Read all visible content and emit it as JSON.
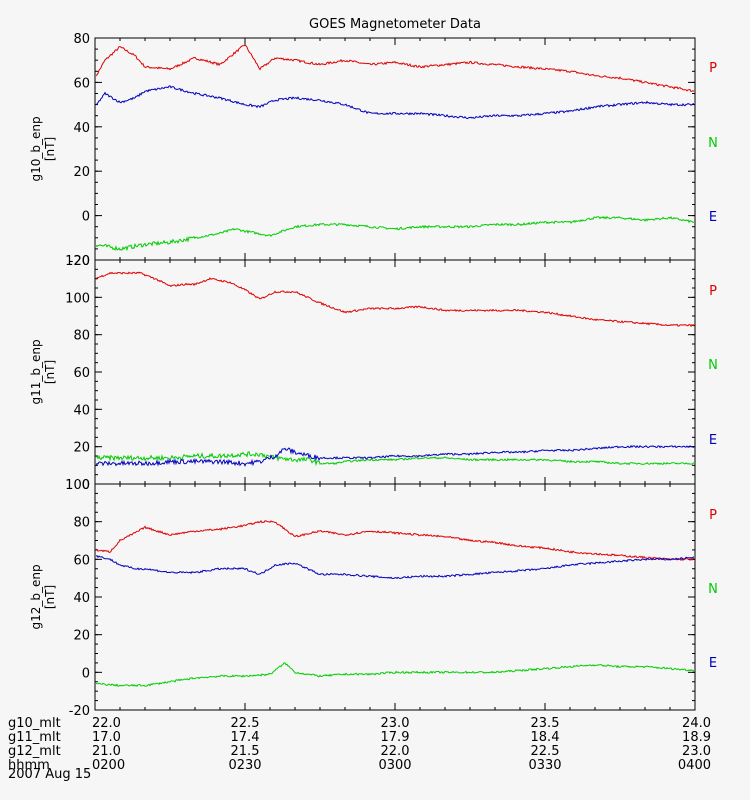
{
  "chart_data": [
    {
      "type": "line",
      "title": "GOES Magnetometer Data",
      "ylabel": "g10_b_enp",
      "yunits": "[nT]",
      "ylim": [
        -20,
        80
      ],
      "yticks": [
        -20,
        0,
        20,
        40,
        60,
        80
      ],
      "yticks_text": [
        "-20",
        "0",
        "20",
        "40",
        "60",
        "80"
      ],
      "xlim": [
        0,
        120
      ],
      "series": [
        {
          "name": "P",
          "color": "#dd0000",
          "x": [
            0,
            2,
            5,
            8,
            10,
            15,
            20,
            25,
            30,
            33,
            36,
            40,
            45,
            50,
            55,
            60,
            65,
            70,
            75,
            80,
            85,
            90,
            95,
            100,
            105,
            110,
            115,
            120
          ],
          "values": [
            62,
            70,
            76,
            72,
            67,
            66,
            71,
            68,
            77,
            66,
            71,
            70,
            68,
            70,
            68,
            69,
            67,
            68,
            69,
            68,
            67,
            66,
            65,
            63,
            62,
            60,
            58,
            56
          ]
        },
        {
          "name": "N",
          "color": "#00cc00",
          "x": [
            0,
            5,
            10,
            15,
            20,
            25,
            28,
            30,
            35,
            40,
            45,
            50,
            55,
            60,
            65,
            70,
            75,
            80,
            85,
            90,
            95,
            100,
            105,
            110,
            115,
            120
          ],
          "values": [
            -13,
            -15,
            -13,
            -12,
            -10,
            -8,
            -6,
            -7,
            -9,
            -5,
            -4,
            -4,
            -5,
            -6,
            -5,
            -5,
            -5,
            -4,
            -4,
            -3,
            -3,
            -1,
            -1,
            -2,
            -1,
            -3
          ]
        },
        {
          "name": "E",
          "color": "#0000bb",
          "x": [
            0,
            2,
            5,
            8,
            10,
            15,
            20,
            25,
            30,
            33,
            36,
            40,
            45,
            50,
            55,
            60,
            65,
            70,
            75,
            80,
            85,
            90,
            95,
            100,
            105,
            110,
            115,
            120
          ],
          "values": [
            49,
            55,
            51,
            53,
            56,
            58,
            55,
            53,
            50,
            49,
            52,
            53,
            52,
            50,
            46,
            46,
            46,
            45,
            44,
            45,
            45,
            46,
            47,
            49,
            50,
            51,
            50,
            50
          ]
        }
      ]
    },
    {
      "type": "line",
      "ylabel": "g11_b_enp",
      "yunits": "[nT]",
      "ylim": [
        0,
        120
      ],
      "yticks": [
        0,
        20,
        40,
        60,
        80,
        100,
        120
      ],
      "yticks_text": [
        "0",
        "20",
        "40",
        "60",
        "80",
        "100",
        "120"
      ],
      "xlim": [
        0,
        120
      ],
      "series": [
        {
          "name": "P",
          "color": "#dd0000",
          "x": [
            0,
            3,
            6,
            9,
            12,
            15,
            18,
            20,
            23,
            25,
            27,
            30,
            33,
            36,
            40,
            45,
            50,
            55,
            60,
            65,
            70,
            75,
            80,
            85,
            90,
            95,
            100,
            105,
            110,
            115,
            120
          ],
          "values": [
            110,
            113,
            113,
            113,
            110,
            106,
            107,
            107,
            110,
            109,
            108,
            104,
            99,
            103,
            103,
            97,
            92,
            94,
            94,
            95,
            93,
            93,
            93,
            93,
            92,
            90,
            88,
            87,
            86,
            85,
            85
          ]
        },
        {
          "name": "N",
          "color": "#00cc00",
          "x": [
            0,
            5,
            10,
            15,
            20,
            25,
            30,
            33,
            36,
            40,
            43,
            45,
            48,
            50,
            55,
            60,
            65,
            70,
            75,
            80,
            85,
            90,
            95,
            100,
            105,
            110,
            115,
            120
          ],
          "values": [
            14,
            14,
            14,
            14,
            15,
            15,
            16,
            16,
            14,
            13,
            13,
            11,
            11,
            12,
            13,
            13,
            14,
            14,
            13,
            13,
            13,
            13,
            12,
            12,
            11,
            11,
            11,
            11
          ]
        },
        {
          "name": "E",
          "color": "#0000bb",
          "x": [
            0,
            5,
            10,
            15,
            20,
            25,
            30,
            33,
            36,
            38,
            40,
            43,
            45,
            50,
            55,
            60,
            65,
            70,
            75,
            80,
            85,
            90,
            95,
            100,
            105,
            110,
            115,
            120
          ],
          "values": [
            11,
            11,
            11,
            12,
            12,
            12,
            11,
            12,
            15,
            19,
            17,
            15,
            14,
            14,
            14,
            15,
            15,
            16,
            16,
            17,
            17,
            18,
            18,
            19,
            20,
            20,
            20,
            20
          ]
        }
      ]
    },
    {
      "type": "line",
      "ylabel": "g12_b_enp",
      "yunits": "[nT]",
      "ylim": [
        -20,
        100
      ],
      "yticks": [
        -20,
        0,
        20,
        40,
        60,
        80,
        100
      ],
      "yticks_text": [
        "-20",
        "0",
        "20",
        "40",
        "60",
        "80",
        "100"
      ],
      "xlim": [
        0,
        120
      ],
      "series": [
        {
          "name": "P",
          "color": "#dd0000",
          "x": [
            0,
            3,
            5,
            8,
            10,
            15,
            20,
            25,
            30,
            33,
            36,
            40,
            45,
            50,
            55,
            60,
            65,
            70,
            75,
            80,
            85,
            90,
            95,
            100,
            105,
            110,
            115,
            120
          ],
          "values": [
            65,
            64,
            70,
            74,
            77,
            73,
            75,
            76,
            78,
            80,
            80,
            72,
            75,
            73,
            75,
            74,
            73,
            72,
            70,
            69,
            67,
            66,
            64,
            63,
            62,
            61,
            60,
            60
          ]
        },
        {
          "name": "N",
          "color": "#00cc00",
          "x": [
            0,
            5,
            10,
            15,
            20,
            25,
            30,
            35,
            38,
            40,
            45,
            50,
            55,
            60,
            65,
            70,
            75,
            80,
            85,
            90,
            95,
            100,
            105,
            110,
            115,
            120
          ],
          "values": [
            -6,
            -7,
            -7,
            -5,
            -3,
            -2,
            -2,
            -1,
            5,
            0,
            -2,
            -1,
            -1,
            0,
            0,
            0,
            0,
            0,
            1,
            2,
            3,
            4,
            3,
            3,
            2,
            1
          ]
        },
        {
          "name": "E",
          "color": "#0000bb",
          "x": [
            0,
            3,
            5,
            8,
            10,
            15,
            20,
            25,
            30,
            33,
            36,
            40,
            45,
            50,
            55,
            60,
            65,
            70,
            75,
            80,
            85,
            90,
            95,
            100,
            105,
            110,
            115,
            120
          ],
          "values": [
            62,
            60,
            57,
            55,
            55,
            53,
            53,
            55,
            55,
            52,
            57,
            58,
            52,
            52,
            51,
            50,
            51,
            51,
            52,
            53,
            54,
            55,
            57,
            58,
            59,
            60,
            60,
            61
          ]
        }
      ]
    }
  ],
  "legend_letters": [
    "P",
    "N",
    "E"
  ],
  "xaxis_rows": {
    "labels": [
      "g10_mlt",
      "g11_mlt",
      "g12_mlt",
      "hhmm"
    ],
    "ticks_x": [
      0,
      30,
      60,
      90,
      120
    ],
    "values": [
      [
        "22.0",
        "22.5",
        "23.0",
        "23.5",
        "24.0"
      ],
      [
        "17.0",
        "17.4",
        "17.9",
        "18.4",
        "18.9"
      ],
      [
        "21.0",
        "21.5",
        "22.0",
        "22.5",
        "23.0"
      ],
      [
        "0200",
        "0230",
        "0300",
        "0330",
        "0400"
      ]
    ]
  },
  "date_label": "2007 Aug 15"
}
